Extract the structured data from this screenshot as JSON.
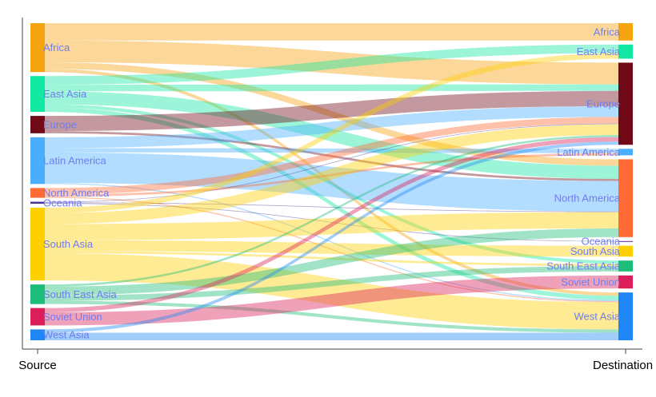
{
  "chart_data": {
    "type": "sankey",
    "title": "",
    "xlabel_left": "Source",
    "xlabel_right": "Destination",
    "label_color": "#6f7cf2",
    "nodes": [
      {
        "name": "Africa",
        "color": "#f5a30e"
      },
      {
        "name": "East Asia",
        "color": "#13e8a3"
      },
      {
        "name": "Europe",
        "color": "#700a19"
      },
      {
        "name": "Latin America",
        "color": "#4aaefc"
      },
      {
        "name": "North America",
        "color": "#ff6b35"
      },
      {
        "name": "Oceania",
        "color": "#4b2f91"
      },
      {
        "name": "South Asia",
        "color": "#ffd000"
      },
      {
        "name": "South East Asia",
        "color": "#1cbd78"
      },
      {
        "name": "Soviet Union",
        "color": "#dc1e5a"
      },
      {
        "name": "West Asia",
        "color": "#1f87f5"
      }
    ],
    "flows": [
      {
        "source": "Africa",
        "target": "Africa",
        "value": 16
      },
      {
        "source": "Africa",
        "target": "Europe",
        "value": 20
      },
      {
        "source": "Africa",
        "target": "North America",
        "value": 6
      },
      {
        "source": "Africa",
        "target": "West Asia",
        "value": 3
      },
      {
        "source": "East Asia",
        "target": "East Asia",
        "value": 8
      },
      {
        "source": "East Asia",
        "target": "Europe",
        "value": 6
      },
      {
        "source": "East Asia",
        "target": "North America",
        "value": 12
      },
      {
        "source": "East Asia",
        "target": "South East Asia",
        "value": 3
      },
      {
        "source": "East Asia",
        "target": "West Asia",
        "value": 4
      },
      {
        "source": "Europe",
        "target": "Europe",
        "value": 14
      },
      {
        "source": "Europe",
        "target": "North America",
        "value": 2
      },
      {
        "source": "Latin America",
        "target": "Europe",
        "value": 10
      },
      {
        "source": "Latin America",
        "target": "Latin America",
        "value": 4
      },
      {
        "source": "Latin America",
        "target": "North America",
        "value": 28
      },
      {
        "source": "Latin America",
        "target": "West Asia",
        "value": 1
      },
      {
        "source": "North America",
        "target": "Europe",
        "value": 6
      },
      {
        "source": "North America",
        "target": "Latin America",
        "value": 2
      },
      {
        "source": "North America",
        "target": "West Asia",
        "value": 1
      },
      {
        "source": "Oceania",
        "target": "Europe",
        "value": 0.6
      },
      {
        "source": "Oceania",
        "target": "Oceania",
        "value": 0.6
      },
      {
        "source": "Oceania",
        "target": "North America",
        "value": 0.6
      },
      {
        "source": "South Asia",
        "target": "East Asia",
        "value": 5
      },
      {
        "source": "South Asia",
        "target": "Europe",
        "value": 10
      },
      {
        "source": "South Asia",
        "target": "North America",
        "value": 15
      },
      {
        "source": "South Asia",
        "target": "South Asia",
        "value": 10
      },
      {
        "source": "South Asia",
        "target": "South East Asia",
        "value": 2
      },
      {
        "source": "South Asia",
        "target": "West Asia",
        "value": 25
      },
      {
        "source": "South East Asia",
        "target": "Europe",
        "value": 2
      },
      {
        "source": "South East Asia",
        "target": "North America",
        "value": 8
      },
      {
        "source": "South East Asia",
        "target": "South East Asia",
        "value": 5
      },
      {
        "source": "South East Asia",
        "target": "West Asia",
        "value": 3
      },
      {
        "source": "Soviet Union",
        "target": "Europe",
        "value": 4
      },
      {
        "source": "Soviet Union",
        "target": "Soviet Union",
        "value": 12
      },
      {
        "source": "West Asia",
        "target": "Europe",
        "value": 3
      },
      {
        "source": "West Asia",
        "target": "West Asia",
        "value": 7
      }
    ]
  }
}
